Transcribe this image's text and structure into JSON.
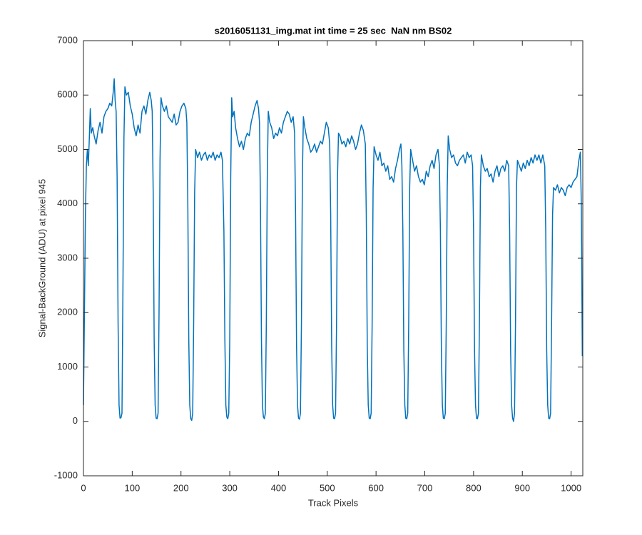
{
  "chart_data": {
    "type": "line",
    "title": "s2016051131_img.mat int time = 25 sec  NaN nm BS02",
    "xlabel": "Track Pixels",
    "ylabel": "Signal-BackGround (ADU) at pixel 945",
    "color": "#0072bd",
    "xlim": [
      0,
      1024
    ],
    "ylim": [
      -1000,
      7000
    ],
    "xticks": [
      0,
      100,
      200,
      300,
      400,
      500,
      600,
      700,
      800,
      900,
      1000
    ],
    "yticks": [
      -1000,
      0,
      1000,
      2000,
      3000,
      4000,
      5000,
      6000,
      7000
    ],
    "x": [
      0,
      2,
      4,
      6,
      8,
      10,
      12,
      14,
      16,
      19,
      22,
      26,
      30,
      34,
      38,
      42,
      46,
      50,
      54,
      58,
      61,
      63,
      65,
      67,
      69,
      71,
      73,
      75,
      77,
      79,
      81,
      83,
      85,
      88,
      92,
      96,
      100,
      104,
      108,
      112,
      116,
      120,
      124,
      128,
      132,
      136,
      139,
      141,
      143,
      145,
      147,
      149,
      151,
      153,
      155,
      157,
      159,
      162,
      166,
      170,
      174,
      178,
      182,
      186,
      190,
      194,
      198,
      202,
      206,
      210,
      212,
      214,
      216,
      218,
      220,
      222,
      224,
      226,
      228,
      230,
      234,
      238,
      242,
      246,
      250,
      254,
      258,
      262,
      266,
      270,
      274,
      278,
      282,
      285,
      288,
      290,
      292,
      294,
      296,
      298,
      300,
      302,
      304,
      306,
      309,
      312,
      316,
      320,
      324,
      328,
      332,
      336,
      340,
      344,
      348,
      352,
      356,
      359,
      361,
      363,
      365,
      367,
      369,
      371,
      373,
      375,
      377,
      379,
      382,
      386,
      390,
      394,
      398,
      402,
      406,
      410,
      414,
      418,
      422,
      426,
      430,
      433,
      435,
      437,
      439,
      441,
      443,
      445,
      447,
      449,
      451,
      454,
      458,
      462,
      466,
      470,
      474,
      478,
      482,
      486,
      490,
      494,
      498,
      502,
      505,
      507,
      509,
      511,
      513,
      515,
      517,
      519,
      521,
      523,
      526,
      530,
      534,
      538,
      542,
      546,
      550,
      554,
      558,
      562,
      566,
      570,
      574,
      578,
      580,
      582,
      584,
      586,
      588,
      590,
      592,
      594,
      596,
      600,
      604,
      608,
      612,
      616,
      620,
      624,
      628,
      632,
      636,
      640,
      644,
      648,
      651,
      653,
      655,
      657,
      659,
      661,
      663,
      665,
      667,
      669,
      671,
      675,
      679,
      683,
      687,
      691,
      695,
      699,
      703,
      707,
      711,
      715,
      719,
      723,
      727,
      730,
      732,
      734,
      736,
      738,
      740,
      742,
      744,
      746,
      748,
      751,
      755,
      759,
      763,
      767,
      771,
      775,
      779,
      783,
      787,
      791,
      795,
      798,
      800,
      802,
      804,
      806,
      808,
      810,
      812,
      814,
      816,
      820,
      824,
      828,
      832,
      836,
      840,
      844,
      848,
      852,
      856,
      860,
      864,
      868,
      872,
      874,
      876,
      878,
      880,
      882,
      884,
      886,
      888,
      890,
      894,
      898,
      902,
      906,
      910,
      914,
      918,
      922,
      926,
      930,
      934,
      938,
      942,
      946,
      948,
      950,
      952,
      954,
      956,
      958,
      960,
      962,
      964,
      968,
      972,
      976,
      980,
      984,
      988,
      992,
      996,
      1000,
      1004,
      1008,
      1012,
      1016,
      1019,
      1021,
      1023
    ],
    "values": [
      300,
      2000,
      3800,
      4700,
      5000,
      4700,
      5200,
      5750,
      5300,
      5400,
      5250,
      5100,
      5350,
      5500,
      5300,
      5600,
      5700,
      5750,
      5850,
      5800,
      6050,
      6300,
      5900,
      5700,
      4500,
      1800,
      300,
      60,
      70,
      150,
      2500,
      5200,
      6150,
      6000,
      6050,
      5800,
      5650,
      5400,
      5250,
      5450,
      5300,
      5700,
      5800,
      5650,
      5900,
      6050,
      5900,
      5700,
      4200,
      1500,
      300,
      60,
      50,
      150,
      2000,
      4800,
      5950,
      5800,
      5700,
      5800,
      5600,
      5550,
      5500,
      5650,
      5450,
      5500,
      5700,
      5800,
      5850,
      5750,
      5500,
      4000,
      1500,
      300,
      50,
      20,
      150,
      1800,
      4200,
      5000,
      4850,
      4950,
      4800,
      4900,
      4950,
      4800,
      4900,
      4850,
      4950,
      4800,
      4900,
      4850,
      4950,
      4800,
      3500,
      1500,
      300,
      80,
      50,
      150,
      1500,
      4500,
      5950,
      5600,
      5700,
      5400,
      5200,
      5050,
      5150,
      5000,
      5200,
      5300,
      5250,
      5500,
      5650,
      5800,
      5900,
      5750,
      5500,
      4000,
      1500,
      300,
      80,
      50,
      150,
      1800,
      4500,
      5700,
      5500,
      5400,
      5200,
      5300,
      5250,
      5400,
      5300,
      5500,
      5600,
      5700,
      5650,
      5500,
      5600,
      5300,
      3800,
      1400,
      300,
      60,
      40,
      150,
      1800,
      4500,
      5600,
      5400,
      5200,
      5100,
      4950,
      5000,
      5100,
      4950,
      5050,
      5150,
      5100,
      5300,
      5500,
      5400,
      5100,
      3800,
      1400,
      300,
      60,
      50,
      150,
      1800,
      4500,
      5300,
      5250,
      5100,
      5150,
      5050,
      5200,
      5100,
      5250,
      5150,
      5000,
      5100,
      5300,
      5450,
      5350,
      5100,
      3800,
      1400,
      300,
      60,
      50,
      150,
      1800,
      4300,
      5050,
      4900,
      4800,
      4950,
      4700,
      4750,
      4600,
      4700,
      4450,
      4500,
      4400,
      4650,
      4800,
      5000,
      5100,
      4700,
      3500,
      1300,
      300,
      60,
      50,
      150,
      1800,
      4300,
      5000,
      4800,
      4600,
      4700,
      4500,
      4400,
      4450,
      4350,
      4600,
      4500,
      4700,
      4800,
      4650,
      4900,
      5000,
      4700,
      3500,
      1300,
      300,
      60,
      50,
      150,
      1800,
      4300,
      5250,
      5000,
      4850,
      4900,
      4750,
      4700,
      4800,
      4850,
      4900,
      4750,
      4950,
      4850,
      4900,
      4700,
      3500,
      1300,
      300,
      60,
      50,
      150,
      1800,
      4300,
      4900,
      4700,
      4600,
      4650,
      4500,
      4550,
      4400,
      4600,
      4700,
      4500,
      4650,
      4700,
      4600,
      4800,
      4700,
      3500,
      1300,
      300,
      60,
      0,
      150,
      1800,
      4300,
      4800,
      4700,
      4600,
      4750,
      4650,
      4800,
      4700,
      4850,
      4750,
      4900,
      4800,
      4900,
      4750,
      4900,
      4700,
      3500,
      1300,
      300,
      60,
      50,
      150,
      1800,
      3800,
      4300,
      4250,
      4350,
      4200,
      4300,
      4250,
      4150,
      4300,
      4350,
      4300,
      4400,
      4450,
      4500,
      4800,
      4950,
      4000,
      1200
    ]
  }
}
